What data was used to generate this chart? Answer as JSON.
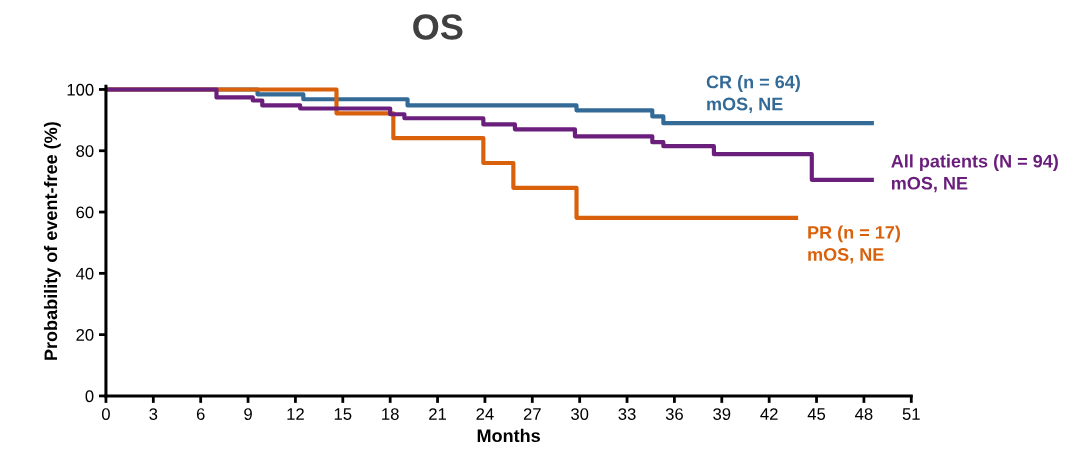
{
  "chart_data": {
    "type": "step",
    "title": "OS",
    "xlabel": "Months",
    "ylabel": "Probability of event-free (%)",
    "xlim": [
      0,
      51
    ],
    "xticks": [
      0,
      3,
      6,
      9,
      12,
      15,
      18,
      21,
      24,
      27,
      30,
      33,
      36,
      39,
      42,
      45,
      48,
      51
    ],
    "ylim": [
      0,
      101
    ],
    "yticks": [
      0,
      20,
      40,
      60,
      80,
      100
    ],
    "grid": false,
    "legend": false,
    "marker": "none",
    "line_style": "solid",
    "series": [
      {
        "name": "CR (n = 64)\nmOS, NE",
        "color": "#336a96",
        "x": [
          0,
          9.6,
          12.5,
          19.1,
          29.8,
          34.6,
          35.3,
          48.5
        ],
        "values": [
          100,
          98.4,
          96.8,
          94.8,
          93.2,
          91.2,
          89,
          89
        ]
      },
      {
        "name": "PR (n = 17)\nmOS, NE",
        "color": "#d9610b",
        "x": [
          0,
          14.6,
          18.2,
          23.9,
          25.8,
          29.8,
          43.7
        ],
        "values": [
          100,
          92.2,
          84.1,
          76,
          67.9,
          58.1,
          58.1
        ]
      },
      {
        "name": "All patients (N = 94)\nmOS, NE",
        "color": "#6b1f7c",
        "x": [
          0,
          7,
          9.3,
          9.9,
          12.3,
          18,
          18.9,
          23.9,
          25.9,
          29.7,
          34.6,
          35.3,
          38.5,
          44.7,
          48.5
        ],
        "values": [
          100,
          97.4,
          96.4,
          94.8,
          93.8,
          91.9,
          90.6,
          88.6,
          87,
          84.7,
          82.8,
          81.5,
          78.9,
          70.5,
          70.5
        ]
      }
    ]
  }
}
